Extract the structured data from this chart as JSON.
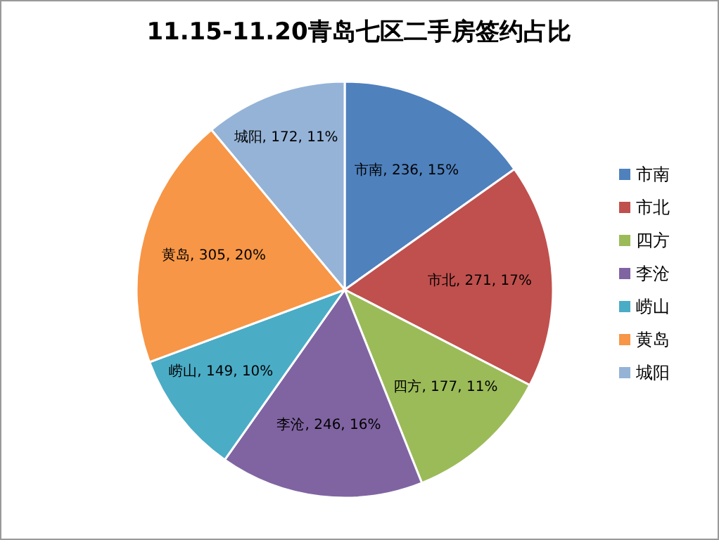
{
  "chart_data": {
    "type": "pie",
    "title": "11.15-11.20青岛七区二手房签约占比",
    "categories": [
      "市南",
      "市北",
      "四方",
      "李沧",
      "崂山",
      "黄岛",
      "城阳"
    ],
    "values": [
      236,
      271,
      177,
      246,
      149,
      305,
      172
    ],
    "colors": [
      "#4f81bd",
      "#c0504d",
      "#9bbb59",
      "#8064a2",
      "#4bacc6",
      "#f79646",
      "#95b3d7"
    ],
    "value_labels": [
      "市南, 236, 15%",
      "市北, 271, 17%",
      "四方, 177, 11%",
      "李沧, 246, 16%",
      "崂山, 149, 10%",
      "黄岛, 305, 20%",
      "城阳, 172, 11%"
    ],
    "legend": "right"
  }
}
